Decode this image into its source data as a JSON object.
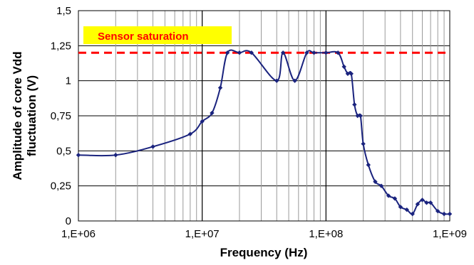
{
  "chart_data": {
    "type": "line",
    "title": "",
    "xlabel": "Frequency (Hz)",
    "ylabel_lines": [
      "Amplitude of core Vdd",
      "fluctuation (V)"
    ],
    "x_scale": "log",
    "xlim": [
      1000000,
      1000000000
    ],
    "ylim": [
      0,
      1.5
    ],
    "grid": true,
    "legend": "none",
    "x_tick_labels": [
      "1,E+06",
      "1,E+07",
      "1,E+08",
      "1,E+09"
    ],
    "y_tick_labels": [
      "0",
      "0,25",
      "0,5",
      "0,75",
      "1",
      "1,25",
      "1,5"
    ],
    "y_ticks": [
      0,
      0.25,
      0.5,
      0.75,
      1,
      1.25,
      1.5
    ],
    "series_color": "#1a237e",
    "series": [
      {
        "x": [
          1000000,
          2000000,
          4000000,
          8000000,
          10000000,
          12000000,
          14000000,
          16000000,
          20000000,
          25000000,
          40000000,
          45000000,
          56000000,
          70000000,
          80000000,
          100000000,
          125000000,
          140000000,
          150000000,
          160000000,
          170000000,
          180000000,
          190000000,
          200000000,
          220000000,
          250000000,
          280000000,
          320000000,
          360000000,
          400000000,
          450000000,
          500000000,
          550000000,
          600000000,
          650000000,
          700000000,
          800000000,
          900000000,
          1000000000
        ],
        "y": [
          0.47,
          0.47,
          0.53,
          0.62,
          0.71,
          0.77,
          0.95,
          1.2,
          1.2,
          1.2,
          1.0,
          1.2,
          1.0,
          1.2,
          1.2,
          1.2,
          1.2,
          1.1,
          1.05,
          1.05,
          0.83,
          0.75,
          0.75,
          0.55,
          0.4,
          0.28,
          0.25,
          0.18,
          0.16,
          0.1,
          0.08,
          0.05,
          0.12,
          0.15,
          0.13,
          0.13,
          0.07,
          0.05,
          0.05
        ]
      }
    ],
    "threshold": {
      "y": 1.2,
      "color": "#ff0000",
      "style": "dashed"
    },
    "annotation": {
      "text": "Sensor saturation",
      "text_color": "#ff0000",
      "bg_color": "#ffff00"
    }
  }
}
